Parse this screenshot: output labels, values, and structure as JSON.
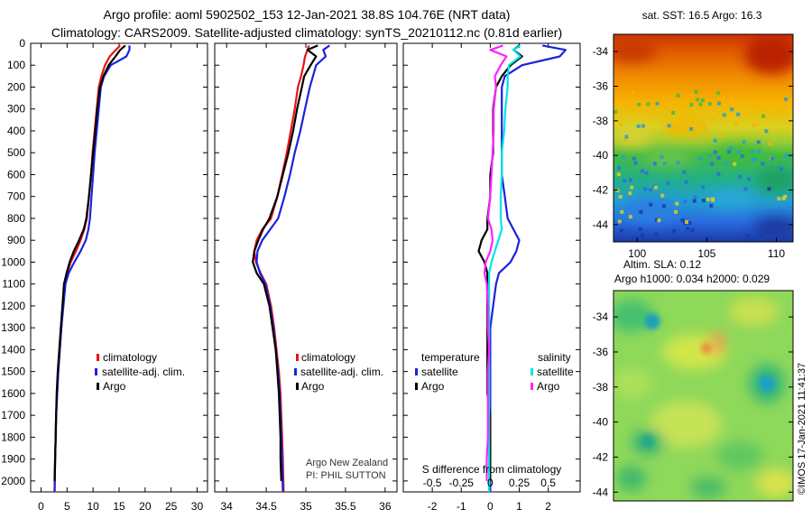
{
  "header": {
    "line1": "Argo profile: aoml 5902502_153 12-Jan-2021 38.8S 104.76E (NRT data)",
    "line2": "Climatology: CARS2009. Satellite-adjusted climatology: synTS_20210112.nc (0.81d earlier)"
  },
  "colors": {
    "climatology": "#ee1111",
    "satellite": "#1a22dd",
    "argo": "#000000",
    "sat_salinity": "#00e5e5",
    "argo_salinity": "#ff22ff"
  },
  "depth_axis": {
    "range": [
      0,
      2050
    ],
    "ticks": [
      "0",
      "100",
      "200",
      "300",
      "400",
      "500",
      "600",
      "700",
      "800",
      "900",
      "1000",
      "1100",
      "1200",
      "1300",
      "1400",
      "1500",
      "1600",
      "1700",
      "1800",
      "1900",
      "2000"
    ]
  },
  "chart_data": [
    {
      "type": "line",
      "panel": "temperature",
      "xlim": [
        -2,
        32
      ],
      "ylim": [
        2050,
        0
      ],
      "xticks": [
        "0",
        "5",
        "10",
        "15",
        "20",
        "25",
        "30"
      ],
      "legend": [
        "climatology",
        "satellite-adj. clim.",
        "Argo"
      ],
      "series": [
        {
          "name": "climatology",
          "x": [
            15.2,
            14.4,
            13.2,
            12.3,
            11.6,
            11.1,
            10.7,
            10.3,
            9.9,
            9.6,
            9.2,
            8.8,
            8.3,
            7.6,
            6.7,
            5.7,
            5.0,
            4.6,
            4.2,
            3.9,
            3.6,
            3.3,
            3.1,
            2.9,
            2.8,
            2.7,
            2.6
          ],
          "y": [
            10,
            30,
            60,
            100,
            150,
            200,
            300,
            400,
            500,
            600,
            700,
            800,
            850,
            900,
            950,
            1000,
            1050,
            1100,
            1200,
            1300,
            1400,
            1500,
            1600,
            1700,
            1800,
            1900,
            2050
          ]
        },
        {
          "name": "satellite-adj. clim.",
          "x": [
            17.0,
            17.0,
            16.4,
            13.4,
            12.1,
            11.5,
            11.1,
            10.7,
            10.3,
            10.0,
            9.7,
            9.4,
            9.1,
            8.6,
            7.6,
            6.4,
            5.3,
            4.7,
            4.3,
            3.9,
            3.6,
            3.3,
            3.1,
            2.9,
            2.8,
            2.7,
            2.6
          ],
          "y": [
            10,
            30,
            60,
            100,
            150,
            200,
            300,
            400,
            500,
            600,
            700,
            800,
            850,
            900,
            950,
            1000,
            1050,
            1100,
            1200,
            1300,
            1400,
            1500,
            1600,
            1700,
            1800,
            1900,
            2050
          ]
        },
        {
          "name": "Argo",
          "x": [
            16.2,
            15.2,
            14.3,
            13.0,
            12.0,
            11.3,
            10.8,
            10.4,
            10.0,
            9.6,
            9.2,
            8.7,
            8.2,
            7.3,
            6.3,
            5.5,
            4.9,
            4.4,
            4.1,
            3.8,
            3.5,
            3.2,
            3.0,
            2.9,
            2.8,
            2.7,
            2.6
          ],
          "y": [
            10,
            30,
            60,
            100,
            150,
            200,
            300,
            400,
            500,
            600,
            700,
            800,
            850,
            900,
            950,
            1000,
            1050,
            1100,
            1200,
            1300,
            1400,
            1500,
            1600,
            1700,
            1800,
            1900,
            2000
          ]
        }
      ]
    },
    {
      "type": "line",
      "panel": "salinity",
      "xlim": [
        33.85,
        36.15
      ],
      "ylim": [
        2050,
        0
      ],
      "xticks": [
        "34",
        "34.5",
        "35",
        "35.5",
        "36"
      ],
      "legend": [
        "climatology",
        "satellite-adj. clim.",
        "Argo"
      ],
      "series": [
        {
          "name": "climatology",
          "x": [
            35.04,
            35.02,
            34.99,
            34.97,
            34.94,
            34.9,
            34.86,
            34.81,
            34.76,
            34.7,
            34.64,
            34.56,
            34.45,
            34.38,
            34.35,
            34.37,
            34.43,
            34.5,
            34.56,
            34.6,
            34.63,
            34.66,
            34.68,
            34.69,
            34.7,
            34.71,
            34.72
          ],
          "y": [
            10,
            30,
            60,
            100,
            150,
            200,
            300,
            400,
            500,
            600,
            700,
            800,
            850,
            900,
            950,
            1000,
            1050,
            1100,
            1200,
            1300,
            1400,
            1500,
            1600,
            1700,
            1800,
            1900,
            2050
          ]
        },
        {
          "name": "satellite-adj. clim.",
          "x": [
            35.3,
            35.22,
            35.25,
            35.13,
            35.09,
            35.05,
            34.99,
            34.93,
            34.86,
            34.8,
            34.73,
            34.65,
            34.55,
            34.45,
            34.39,
            34.38,
            34.42,
            34.49,
            34.55,
            34.59,
            34.62,
            34.65,
            34.67,
            34.68,
            34.69,
            34.7,
            34.71
          ],
          "y": [
            10,
            30,
            60,
            100,
            150,
            200,
            300,
            400,
            500,
            600,
            700,
            800,
            850,
            900,
            950,
            1000,
            1050,
            1100,
            1200,
            1300,
            1400,
            1500,
            1600,
            1700,
            1800,
            1900,
            2050
          ]
        },
        {
          "name": "Argo",
          "x": [
            35.15,
            35.02,
            35.13,
            35.06,
            34.98,
            34.95,
            34.89,
            34.84,
            34.78,
            34.71,
            34.64,
            34.54,
            34.46,
            34.4,
            34.35,
            34.33,
            34.38,
            34.47,
            34.54,
            34.58,
            34.62,
            34.64,
            34.66,
            34.67,
            34.68,
            34.68,
            34.69
          ],
          "y": [
            10,
            30,
            60,
            100,
            150,
            200,
            300,
            400,
            500,
            600,
            700,
            800,
            850,
            900,
            950,
            1000,
            1050,
            1100,
            1200,
            1300,
            1400,
            1500,
            1600,
            1700,
            1800,
            1900,
            2000
          ]
        }
      ]
    },
    {
      "type": "line",
      "panel": "difference",
      "title": "S difference from climatology",
      "xlim": [
        -3,
        3.1
      ],
      "ylim": [
        2050,
        0
      ],
      "xticks": [
        "-2",
        "-1",
        "0",
        "1",
        "2"
      ],
      "secondary_xticks": [
        "-0.5",
        "-0.25",
        "0",
        "0.25",
        "0.5"
      ],
      "legend_temperature": [
        "satellite",
        "Argo"
      ],
      "legend_salinity": [
        "satellite",
        "Argo"
      ],
      "legend_headers": [
        "temperature",
        "salinity"
      ],
      "series": [
        {
          "name": "temperature satellite",
          "x": [
            1.8,
            2.6,
            2.4,
            1.1,
            0.5,
            0.4,
            0.4,
            0.4,
            0.4,
            0.4,
            0.5,
            0.6,
            0.8,
            1.0,
            0.9,
            0.7,
            0.3,
            0.2,
            0.1,
            0.0,
            0.0,
            0.0,
            0.0,
            0.0,
            0.0,
            0.0,
            0.0
          ],
          "y": [
            10,
            30,
            60,
            100,
            150,
            200,
            300,
            400,
            500,
            600,
            700,
            800,
            850,
            900,
            950,
            1000,
            1050,
            1100,
            1200,
            1300,
            1400,
            1500,
            1600,
            1700,
            1800,
            1900,
            2050
          ]
        },
        {
          "name": "temperature Argo",
          "x": [
            1.0,
            0.8,
            1.1,
            0.7,
            0.4,
            0.2,
            0.1,
            0.1,
            0.1,
            0.0,
            0.0,
            -0.1,
            -0.1,
            -0.3,
            -0.4,
            -0.2,
            -0.1,
            -0.1,
            -0.1,
            -0.1,
            -0.1,
            -0.1,
            -0.1,
            0.0,
            0.0,
            0.0,
            0.0
          ],
          "y": [
            10,
            30,
            60,
            100,
            150,
            200,
            300,
            400,
            500,
            600,
            700,
            800,
            850,
            900,
            950,
            1000,
            1050,
            1100,
            1200,
            1300,
            1400,
            1500,
            1600,
            1700,
            1800,
            1900,
            2000
          ]
        },
        {
          "name": "salinity satellite",
          "x": [
            0.26,
            0.2,
            0.26,
            0.16,
            0.15,
            0.15,
            0.13,
            0.12,
            0.1,
            0.1,
            0.09,
            0.09,
            0.1,
            0.07,
            0.04,
            0.01,
            -0.01,
            -0.01,
            -0.01,
            -0.01,
            -0.01,
            -0.01,
            -0.01,
            -0.01,
            -0.01,
            -0.01,
            -0.01
          ],
          "y": [
            10,
            30,
            60,
            100,
            150,
            200,
            300,
            400,
            500,
            600,
            700,
            800,
            850,
            900,
            950,
            1000,
            1050,
            1100,
            1200,
            1300,
            1400,
            1500,
            1600,
            1700,
            1800,
            1900,
            2050
          ]
        },
        {
          "name": "salinity Argo",
          "x": [
            0.11,
            0.0,
            0.14,
            0.09,
            0.04,
            0.05,
            0.03,
            0.03,
            0.02,
            0.01,
            0.0,
            -0.02,
            0.01,
            0.02,
            0.0,
            -0.04,
            -0.05,
            -0.03,
            -0.02,
            -0.02,
            -0.01,
            -0.02,
            -0.02,
            -0.02,
            -0.02,
            -0.03,
            -0.03
          ],
          "y": [
            10,
            30,
            60,
            100,
            150,
            200,
            300,
            400,
            500,
            600,
            700,
            800,
            850,
            900,
            950,
            1000,
            1050,
            1100,
            1200,
            1300,
            1400,
            1500,
            1600,
            1700,
            1800,
            1900,
            2000
          ]
        }
      ]
    },
    {
      "type": "heatmap",
      "panel": "sst-map",
      "title": "sat. SST: 16.5 Argo: 16.3",
      "xlim": [
        98.3,
        111.2
      ],
      "ylim": [
        -45,
        -33
      ],
      "xticks": [
        "100",
        "105",
        "110"
      ],
      "yticks": [
        "-34",
        "-36",
        "-38",
        "-40",
        "-42",
        "-44"
      ]
    },
    {
      "type": "heatmap",
      "panel": "sla-map",
      "title_line1": "Altim. SLA: 0.12",
      "title_line2": "Argo h1000: 0.034 h2000: 0.029",
      "xlim": [
        98.3,
        111.2
      ],
      "ylim": [
        -44.5,
        -32.5
      ],
      "yticks": [
        "-34",
        "-36",
        "-38",
        "-40",
        "-42",
        "-44"
      ]
    }
  ],
  "credits": {
    "line1": "Argo New Zealand",
    "line2": "PI: PHIL SUTTON",
    "imos_stamp": "©IMOS 17-Jan-2021 11:41:37"
  }
}
